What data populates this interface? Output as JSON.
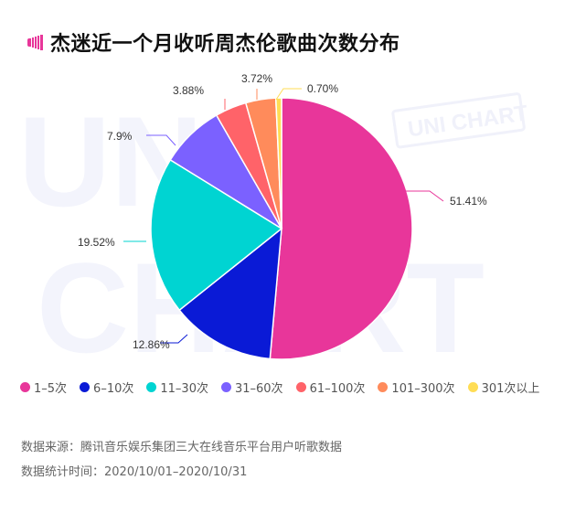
{
  "header": {
    "title": "杰迷近一个月收听周杰伦歌曲次数分布",
    "icon": "speaker-bars-icon",
    "accent_color": "#E8369A"
  },
  "watermark": {
    "large_text_1": "UNI",
    "large_text_2": "CHART",
    "stamp_text": "UNI CHART"
  },
  "chart_data": {
    "type": "pie",
    "title": "杰迷近一个月收听周杰伦歌曲次数分布",
    "categories": [
      "1-5次",
      "6-10次",
      "11-30次",
      "31-60次",
      "61-100次",
      "101-300次",
      "301次以上"
    ],
    "values": [
      51.41,
      12.86,
      19.52,
      7.9,
      3.88,
      3.72,
      0.7
    ],
    "labels": [
      "51.41%",
      "12.86%",
      "19.52%",
      "7.9%",
      "3.88%",
      "3.72%",
      "0.70%"
    ],
    "colors": [
      "#E8369A",
      "#0A1AD6",
      "#00D4D2",
      "#7B61FF",
      "#FF6369",
      "#FF8B5B",
      "#FFDD55"
    ],
    "start_angle": "12 o'clock",
    "direction": "clockwise",
    "legend_position": "bottom"
  },
  "legend": [
    {
      "label": "1–5次",
      "color": "#E8369A"
    },
    {
      "label": "6–10次",
      "color": "#0A1AD6"
    },
    {
      "label": "11–30次",
      "color": "#00D4D2"
    },
    {
      "label": "31–60次",
      "color": "#7B61FF"
    },
    {
      "label": "61–100次",
      "color": "#FF6369"
    },
    {
      "label": "101–300次",
      "color": "#FF8B5B"
    },
    {
      "label": "301次以上",
      "color": "#FFDD55"
    }
  ],
  "footer": {
    "source": "数据来源：腾讯音乐娱乐集团三大在线音乐平台用户听歌数据",
    "period": "数据统计时间：2020/10/01–2020/10/31"
  }
}
